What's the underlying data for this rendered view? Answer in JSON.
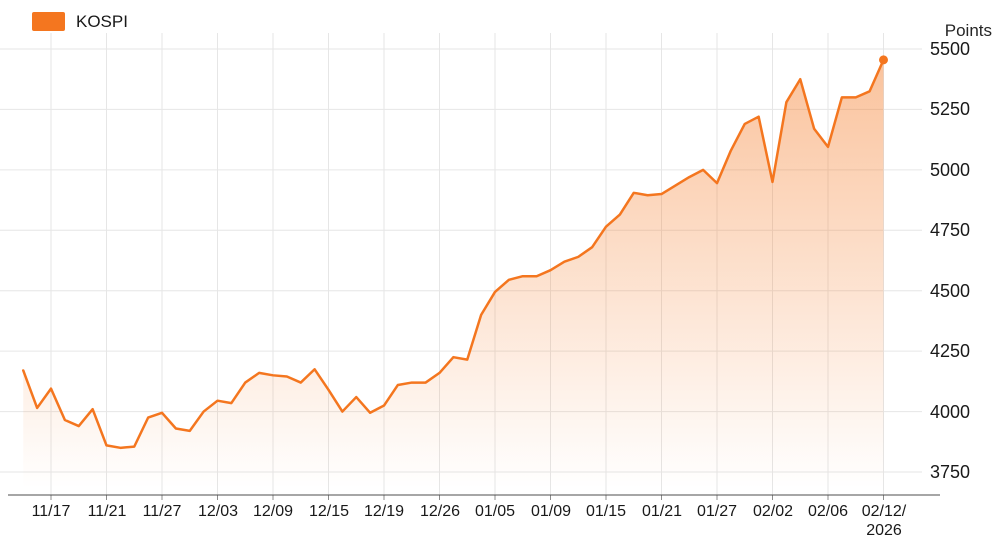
{
  "legend": {
    "label": "KOSPI"
  },
  "y_axis": {
    "unit_label": "Points"
  },
  "colors": {
    "line": "#f4761f",
    "fill_top": "rgba(244,118,31,0.45)",
    "grid": "#e6e6e6",
    "axis": "#4d4d4d",
    "tick": "#8c8c8c",
    "text": "#191919"
  },
  "chart_data": {
    "type": "area",
    "title": "",
    "series_name": "KOSPI",
    "unit": "Points",
    "legend_position": "top-left",
    "grid": true,
    "ylim": [
      3750,
      5500
    ],
    "y_ticks": [
      3750,
      4000,
      4250,
      4500,
      4750,
      5000,
      5250,
      5500
    ],
    "x": [
      "11/13",
      "11/14",
      "11/17",
      "11/18",
      "11/19",
      "11/20",
      "11/21",
      "11/24",
      "11/25",
      "11/26",
      "11/27",
      "11/28",
      "12/01",
      "12/02",
      "12/03",
      "12/04",
      "12/05",
      "12/08",
      "12/09",
      "12/10",
      "12/11",
      "12/12",
      "12/15",
      "12/16",
      "12/17",
      "12/18",
      "12/19",
      "12/22",
      "12/23",
      "12/24",
      "12/26",
      "12/29",
      "12/30",
      "01/02",
      "01/05",
      "01/06",
      "01/07",
      "01/08",
      "01/09",
      "01/12",
      "01/13",
      "01/14",
      "01/15",
      "01/16",
      "01/19",
      "01/20",
      "01/21",
      "01/22",
      "01/23",
      "01/26",
      "01/27",
      "01/28",
      "01/29",
      "01/30",
      "02/02",
      "02/03",
      "02/04",
      "02/05",
      "02/06",
      "02/09",
      "02/10",
      "02/11",
      "02/12"
    ],
    "values": [
      4170,
      4015,
      4095,
      3965,
      3940,
      4010,
      3860,
      3850,
      3855,
      3975,
      3995,
      3930,
      3920,
      4000,
      4045,
      4035,
      4120,
      4160,
      4150,
      4145,
      4120,
      4175,
      4090,
      4000,
      4060,
      3995,
      4025,
      4110,
      4120,
      4120,
      4160,
      4225,
      4215,
      4400,
      4495,
      4545,
      4560,
      4560,
      4585,
      4620,
      4640,
      4680,
      4765,
      4815,
      4905,
      4895,
      4900,
      4935,
      4970,
      5000,
      4945,
      5080,
      5190,
      5220,
      4950,
      5280,
      5375,
      5170,
      5095,
      5300,
      5300,
      5325,
      5455
    ],
    "x_tick_labels": [
      "11/17",
      "11/21",
      "11/27",
      "12/03",
      "12/09",
      "12/15",
      "12/19",
      "12/26",
      "01/05",
      "01/09",
      "01/15",
      "01/21",
      "01/27",
      "02/02",
      "02/06",
      "02/12/2026"
    ],
    "x_tick_indices": [
      2,
      6,
      10,
      14,
      18,
      22,
      26,
      30,
      34,
      38,
      42,
      46,
      50,
      54,
      58,
      62
    ],
    "last_value": 5455
  }
}
